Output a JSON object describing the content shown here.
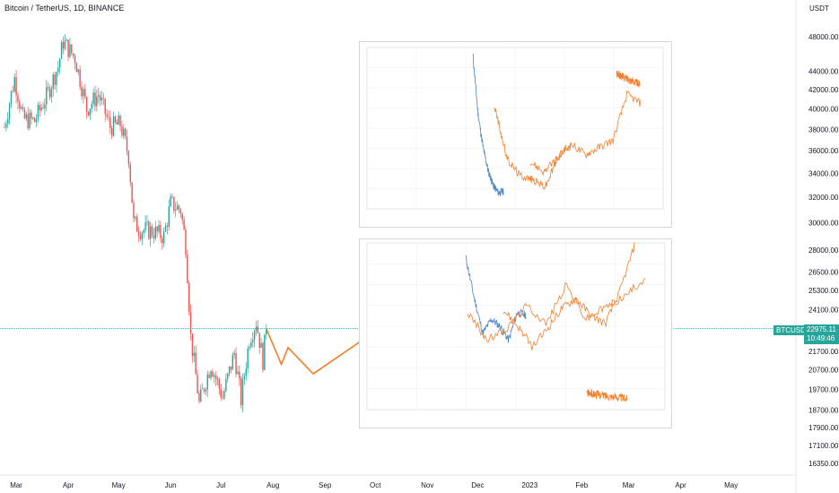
{
  "header": {
    "title": "Bitcoin / TetherUS, 1D, BINANCE",
    "y_unit": "USDT"
  },
  "colors": {
    "up": "#26a69a",
    "down": "#ef5350",
    "projection": "#f57c28",
    "price_line": "#26a69a",
    "series_2": "#4a84c4"
  },
  "price_tag": {
    "symbol": "BTCUSDT",
    "price": "22975.11",
    "countdown": "10:49:46"
  },
  "chart_data": [
    {
      "type": "line",
      "description_axis": "main",
      "title": "Bitcoin / TetherUS, 1D, BINANCE",
      "ylabel": "USDT",
      "y_scale": "log",
      "y_ticks": [
        "48000.00",
        "44000.00",
        "42000.00",
        "40000.00",
        "38000.00",
        "36000.00",
        "34000.00",
        "32000.00",
        "30000.00",
        "28000.00",
        "26500.00",
        "25300.00",
        "24100.00",
        "21700.00",
        "20700.00",
        "19700.00",
        "18700.00",
        "17900.00",
        "17100.00",
        "16350.00"
      ],
      "x_ticks": [
        "Mar",
        "Apr",
        "May",
        "Jun",
        "Jul",
        "Aug",
        "Sep",
        "Oct",
        "Nov",
        "Dec",
        "2023",
        "Feb",
        "Mar",
        "Apr",
        "May"
      ],
      "candles": [
        {
          "date": "2022-02-22",
          "close": 38200
        },
        {
          "date": "2022-02-28",
          "close": 43200
        },
        {
          "date": "2022-03-05",
          "close": 39000
        },
        {
          "date": "2022-03-12",
          "close": 38800
        },
        {
          "date": "2022-03-19",
          "close": 41300
        },
        {
          "date": "2022-03-26",
          "close": 44500
        },
        {
          "date": "2022-03-29",
          "close": 47400
        },
        {
          "date": "2022-04-05",
          "close": 45500
        },
        {
          "date": "2022-04-12",
          "close": 40000
        },
        {
          "date": "2022-04-19",
          "close": 41500
        },
        {
          "date": "2022-04-26",
          "close": 38200
        },
        {
          "date": "2022-05-02",
          "close": 38500
        },
        {
          "date": "2022-05-07",
          "close": 35500
        },
        {
          "date": "2022-05-10",
          "close": 30000
        },
        {
          "date": "2022-05-14",
          "close": 29500
        },
        {
          "date": "2022-05-21",
          "close": 29400
        },
        {
          "date": "2022-05-28",
          "close": 29000
        },
        {
          "date": "2022-06-01",
          "close": 31500
        },
        {
          "date": "2022-06-07",
          "close": 31000
        },
        {
          "date": "2022-06-10",
          "close": 28400
        },
        {
          "date": "2022-06-13",
          "close": 22500
        },
        {
          "date": "2022-06-18",
          "close": 19000
        },
        {
          "date": "2022-06-25",
          "close": 21000
        },
        {
          "date": "2022-07-02",
          "close": 19300
        },
        {
          "date": "2022-07-09",
          "close": 21600
        },
        {
          "date": "2022-07-13",
          "close": 19200
        },
        {
          "date": "2022-07-18",
          "close": 22400
        },
        {
          "date": "2022-07-22",
          "close": 23400
        },
        {
          "date": "2022-07-26",
          "close": 21200
        },
        {
          "date": "2022-07-28",
          "close": 22975
        }
      ],
      "projection": [
        {
          "date": "2022-07-28",
          "value": 22975
        },
        {
          "date": "2022-08-06",
          "value": 21000
        },
        {
          "date": "2022-08-10",
          "value": 21900
        },
        {
          "date": "2022-08-25",
          "value": 20500
        },
        {
          "date": "2022-09-26",
          "value": 22500
        }
      ],
      "current_price": 22975.11
    },
    {
      "type": "line",
      "description_axis": "inset-top",
      "series": [
        {
          "values": [
            41500,
            37500,
            35200,
            33600,
            32600,
            32100,
            32200
          ]
        },
        {
          "values": [
            38000,
            34400,
            33300,
            33000,
            32500,
            34500,
            35500
          ]
        },
        {
          "values": [
            34200,
            33500,
            34500,
            35400,
            34700,
            35200,
            35700,
            38800,
            38200
          ]
        },
        {
          "values": [
            40200,
            39500
          ]
        }
      ]
    },
    {
      "type": "line",
      "description_axis": "inset-bottom",
      "series": [
        {
          "values": [
            27000,
            24000,
            21500,
            22500,
            22000,
            21000,
            23000,
            22800
          ]
        },
        {
          "values": [
            23000,
            21000,
            21800,
            23500,
            22200,
            25000,
            22500,
            23400,
            24200,
            25500
          ]
        },
        {
          "values": [
            23200,
            22000,
            20500,
            21800,
            23300,
            24000,
            22800,
            22200,
            24500,
            27800
          ]
        },
        {
          "values": [
            17200,
            16800
          ]
        }
      ]
    }
  ]
}
